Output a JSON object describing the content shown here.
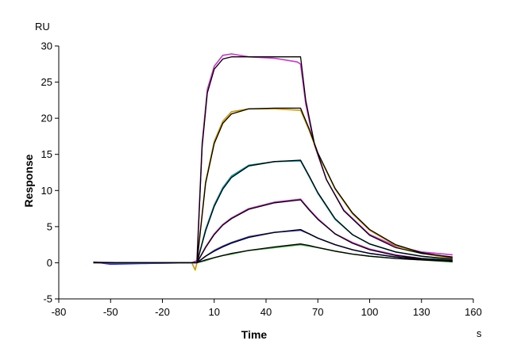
{
  "chart_data": {
    "type": "line",
    "title": "",
    "xlabel": "Time",
    "xunit": "s",
    "ylabel": "Response",
    "yunit": "RU",
    "xlim": [
      -80,
      160
    ],
    "ylim": [
      -5,
      30
    ],
    "xticks": [
      -80,
      -50,
      -20,
      10,
      40,
      70,
      100,
      130,
      160
    ],
    "yticks": [
      -5,
      0,
      5,
      10,
      15,
      20,
      25,
      30
    ],
    "grid": false,
    "legend": "none",
    "series": [
      {
        "color": "#000000",
        "x": [
          -60,
          -30,
          -4,
          0,
          3,
          6,
          10,
          15,
          20,
          30,
          45,
          58,
          60,
          63,
          68,
          75,
          85,
          100,
          115,
          130,
          148
        ],
        "y": [
          0,
          0,
          0,
          0,
          16,
          23.5,
          26.8,
          28.2,
          28.5,
          28.5,
          28.5,
          28.5,
          28.5,
          22.5,
          16.5,
          11.5,
          7.2,
          3.8,
          2.1,
          1.3,
          0.8
        ]
      },
      {
        "color": "#cc33cc",
        "x": [
          -60,
          -30,
          -3,
          0,
          3,
          6,
          10,
          15,
          20,
          30,
          45,
          58,
          60,
          63,
          68,
          75,
          85,
          100,
          115,
          130,
          148
        ],
        "y": [
          0.1,
          -0.1,
          0,
          0.3,
          16.5,
          24,
          27.2,
          28.7,
          28.9,
          28.5,
          28.3,
          27.8,
          27.5,
          22,
          16.3,
          11.5,
          7.3,
          3.9,
          2.3,
          1.5,
          1.1
        ]
      },
      {
        "color": "#000000",
        "x": [
          -60,
          -4,
          0,
          5,
          10,
          15,
          20,
          30,
          45,
          60,
          65,
          70,
          80,
          90,
          100,
          115,
          130,
          148
        ],
        "y": [
          0,
          0,
          0,
          11,
          16.5,
          19.3,
          20.6,
          21.3,
          21.4,
          21.4,
          18.5,
          15.2,
          10.3,
          6.9,
          4.6,
          2.5,
          1.4,
          0.7
        ]
      },
      {
        "color": "#cc9900",
        "x": [
          -60,
          -3,
          -1,
          0,
          5,
          10,
          15,
          20,
          30,
          45,
          60,
          65,
          70,
          80,
          90,
          100,
          115,
          130,
          148
        ],
        "y": [
          0,
          0,
          -1,
          0,
          11.2,
          16.8,
          19.6,
          20.9,
          21.3,
          21.3,
          21.1,
          18.3,
          15.1,
          10.2,
          6.8,
          4.5,
          2.4,
          1.3,
          0.6
        ]
      },
      {
        "color": "#000000",
        "x": [
          -60,
          -4,
          0,
          5,
          10,
          15,
          20,
          30,
          45,
          60,
          65,
          70,
          80,
          90,
          100,
          115,
          130,
          148
        ],
        "y": [
          0,
          0,
          0,
          4.4,
          7.8,
          10.2,
          11.8,
          13.4,
          14.0,
          14.2,
          12.0,
          9.7,
          6.1,
          3.9,
          2.6,
          1.5,
          0.9,
          0.5
        ]
      },
      {
        "color": "#0099aa",
        "x": [
          -60,
          -3,
          0,
          5,
          10,
          15,
          20,
          30,
          45,
          60,
          65,
          70,
          80,
          90,
          100,
          115,
          130,
          148
        ],
        "y": [
          0,
          0,
          0,
          4.6,
          8.0,
          10.4,
          12.0,
          13.5,
          14.0,
          14.1,
          11.9,
          9.6,
          6.0,
          3.9,
          2.6,
          1.5,
          0.9,
          0.4
        ]
      },
      {
        "color": "#000000",
        "x": [
          -60,
          -4,
          0,
          5,
          10,
          15,
          20,
          30,
          45,
          60,
          65,
          70,
          80,
          90,
          100,
          115,
          130,
          148
        ],
        "y": [
          0,
          0,
          0,
          2.1,
          3.9,
          5.2,
          6.1,
          7.4,
          8.3,
          8.7,
          7.3,
          6.0,
          4.0,
          2.7,
          1.8,
          1.0,
          0.6,
          0.3
        ]
      },
      {
        "color": "#cc33cc",
        "x": [
          -60,
          -3,
          0,
          5,
          10,
          15,
          20,
          30,
          45,
          60,
          65,
          70,
          80,
          90,
          100,
          115,
          130,
          148
        ],
        "y": [
          0,
          0,
          0,
          2.2,
          4.0,
          5.3,
          6.2,
          7.5,
          8.4,
          8.8,
          7.4,
          6.1,
          4.0,
          2.8,
          1.9,
          1.1,
          0.6,
          0.3
        ]
      },
      {
        "color": "#000000",
        "x": [
          -60,
          -4,
          0,
          5,
          10,
          15,
          20,
          30,
          45,
          60,
          65,
          70,
          80,
          90,
          100,
          115,
          130,
          148
        ],
        "y": [
          0,
          0,
          0,
          0.9,
          1.6,
          2.2,
          2.7,
          3.5,
          4.2,
          4.6,
          4.0,
          3.4,
          2.5,
          1.8,
          1.3,
          0.8,
          0.5,
          0.2
        ]
      },
      {
        "color": "#3333cc",
        "x": [
          -60,
          -50,
          -30,
          -3,
          0,
          5,
          10,
          15,
          20,
          30,
          45,
          60,
          65,
          70,
          80,
          90,
          100,
          115,
          130,
          148
        ],
        "y": [
          0.1,
          -0.2,
          -0.1,
          0,
          0,
          0.9,
          1.7,
          2.3,
          2.8,
          3.6,
          4.2,
          4.5,
          4.0,
          3.4,
          2.5,
          1.8,
          1.3,
          0.8,
          0.5,
          0.2
        ]
      },
      {
        "color": "#000000",
        "x": [
          -60,
          -4,
          0,
          5,
          10,
          15,
          20,
          30,
          45,
          60,
          65,
          70,
          80,
          90,
          100,
          115,
          130,
          148
        ],
        "y": [
          0,
          0,
          0,
          0.4,
          0.7,
          1.0,
          1.3,
          1.7,
          2.2,
          2.6,
          2.4,
          2.1,
          1.6,
          1.2,
          0.9,
          0.6,
          0.4,
          0.2
        ]
      },
      {
        "color": "#339933",
        "x": [
          -60,
          -3,
          0,
          5,
          10,
          15,
          20,
          30,
          45,
          60,
          65,
          70,
          80,
          90,
          100,
          115,
          130,
          148
        ],
        "y": [
          0,
          0,
          0,
          0.3,
          0.7,
          1.0,
          1.2,
          1.7,
          2.1,
          2.5,
          2.3,
          2.1,
          1.6,
          1.2,
          0.9,
          0.6,
          0.4,
          0.1
        ]
      }
    ]
  }
}
